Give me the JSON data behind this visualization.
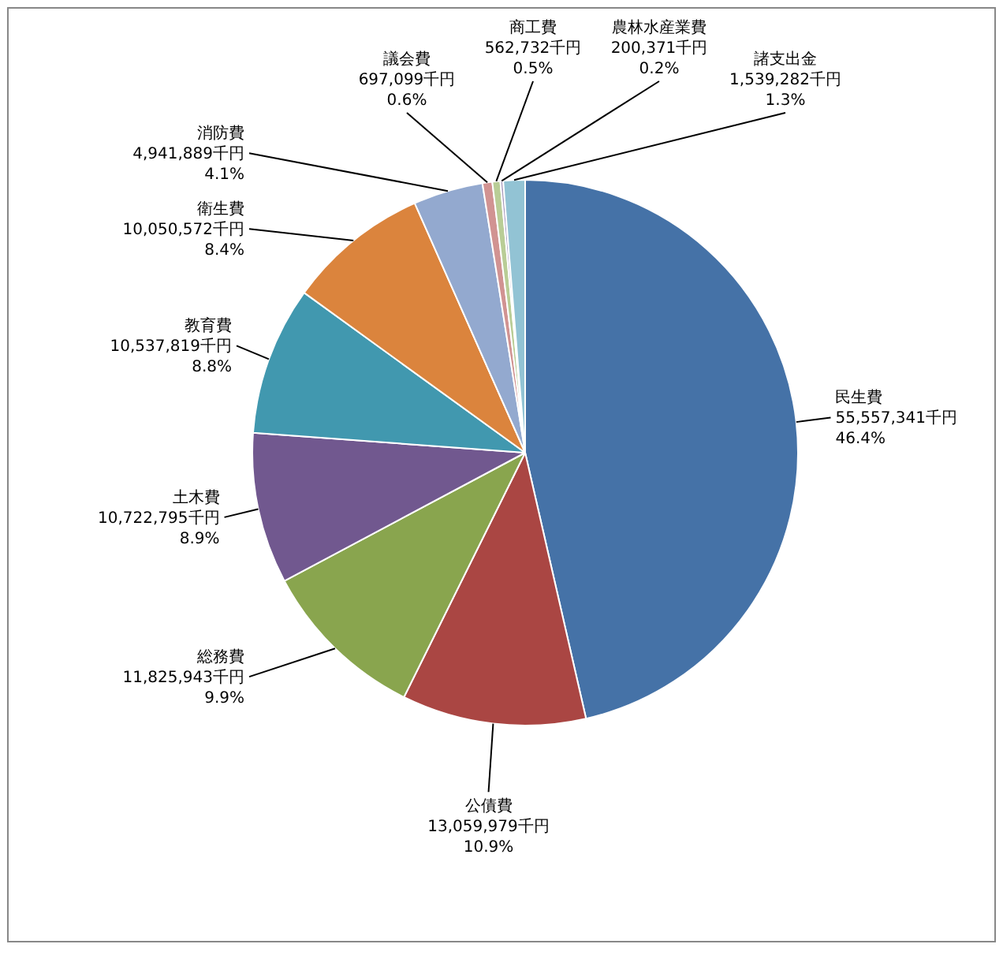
{
  "chart_data": {
    "type": "pie",
    "categories": [
      "民生費",
      "公債費",
      "総務費",
      "土木費",
      "教育費",
      "衛生費",
      "消防費",
      "議会費",
      "商工費",
      "農林水産業費",
      "諸支出金"
    ],
    "values": [
      55557341,
      13059979,
      11825943,
      10722795,
      10537819,
      10050572,
      4941889,
      697099,
      562732,
      200371,
      1539282
    ],
    "value_labels": [
      "55,557,341千円\n46.4%",
      "13,059,979千円\n10.9%",
      "11,825,943千円\n9.9%",
      "10,722,795千円\n8.9%",
      "10,537,819千円\n8.8%",
      "10,050,572千円\n8.4%",
      "4,941,889千円\n4.1%",
      "697,099千円\n0.6%",
      "562,732千円\n0.5%",
      "200,371千円\n0.2%",
      "1,539,282千円\n1.3%"
    ],
    "colors": [
      "#4572a7",
      "#aa4643",
      "#89a54e",
      "#71588f",
      "#4198af",
      "#db843d",
      "#93a9cf",
      "#d19392",
      "#b9cd96",
      "#a99bbd",
      "#92c3d4"
    ],
    "legend": false
  }
}
